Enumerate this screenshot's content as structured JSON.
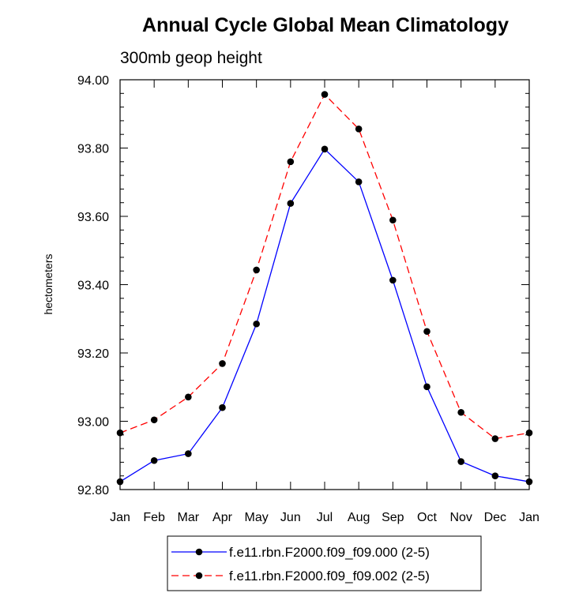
{
  "chart_data": {
    "type": "line",
    "title": "Annual Cycle Global Mean Climatology",
    "subtitle": "300mb geop height",
    "xlabel": "",
    "ylabel": "hectometers",
    "categories": [
      "Jan",
      "Feb",
      "Mar",
      "Apr",
      "May",
      "Jun",
      "Jul",
      "Aug",
      "Sep",
      "Oct",
      "Nov",
      "Dec",
      "Jan"
    ],
    "ylim": [
      92.8,
      94.0
    ],
    "yticks": [
      "92.80",
      "93.00",
      "93.20",
      "93.40",
      "93.60",
      "93.80",
      "94.00"
    ],
    "grid": false,
    "legend_position": "bottom",
    "series": [
      {
        "name": "f.e11.rbn.F2000.f09_f09.000 (2-5)",
        "color": "#0000ff",
        "dash": "solid",
        "values": [
          92.823,
          92.885,
          92.905,
          93.04,
          93.285,
          93.638,
          93.797,
          93.701,
          93.413,
          93.101,
          92.882,
          92.84,
          92.823
        ]
      },
      {
        "name": "f.e11.rbn.F2000.f09_f09.002 (2-5)",
        "color": "#ff0000",
        "dash": "dashed",
        "values": [
          92.966,
          93.004,
          93.071,
          93.169,
          93.443,
          93.76,
          93.957,
          93.856,
          93.589,
          93.263,
          93.026,
          92.949,
          92.966
        ]
      }
    ]
  }
}
